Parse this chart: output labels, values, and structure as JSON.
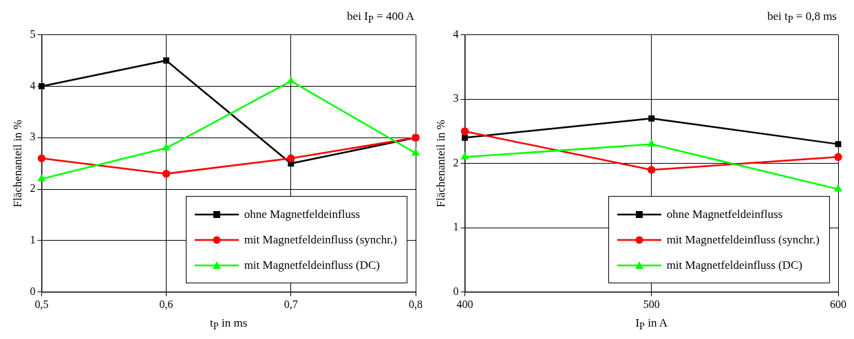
{
  "chart_data": [
    {
      "type": "line",
      "title": "bei I$_{P}$ = 400 A",
      "xlabel": "t$_{P}$ in ms",
      "ylabel": "Flächenanteil in %",
      "x": [
        0.5,
        0.6,
        0.7,
        0.8
      ],
      "xlim": [
        0.5,
        0.8
      ],
      "xticks": [
        {
          "value": 0.5,
          "label": "0,5"
        },
        {
          "value": 0.6,
          "label": "0,6"
        },
        {
          "value": 0.7,
          "label": "0,7"
        },
        {
          "value": 0.8,
          "label": "0,8"
        }
      ],
      "ylim": [
        0,
        5
      ],
      "yticks": [
        0,
        1,
        2,
        3,
        4,
        5
      ],
      "grid": true,
      "legend": "bottom right",
      "line_style": "solid",
      "series": [
        {
          "name": "ohne Magnetfeldeinfluss",
          "color": "#000000",
          "marker": "square",
          "values": [
            4.0,
            4.5,
            2.5,
            3.0
          ]
        },
        {
          "name": "mit Magnetfeldeinfluss (synchr.)",
          "color": "#ff0000",
          "marker": "circle",
          "values": [
            2.6,
            2.3,
            2.6,
            3.0
          ]
        },
        {
          "name": "mit Magnetfeldeinfluss (DC)",
          "color": "#00ff00",
          "marker": "triangle",
          "values": [
            2.2,
            2.8,
            4.1,
            2.7
          ]
        }
      ]
    },
    {
      "type": "line",
      "title": "bei t$_{P}$ = 0,8 ms",
      "xlabel": "I$_{P}$ in A",
      "ylabel": "Flächenanteil in %",
      "x": [
        400,
        500,
        600
      ],
      "xlim": [
        400,
        600
      ],
      "xticks": [
        400,
        500,
        600
      ],
      "ylim": [
        0,
        4
      ],
      "yticks": [
        0,
        1,
        2,
        3,
        4
      ],
      "grid": true,
      "legend": "bottom right",
      "line_style": "solid",
      "series": [
        {
          "name": "ohne Magnetfeldeinfluss",
          "color": "#000000",
          "marker": "square",
          "values": [
            2.4,
            2.7,
            2.3
          ]
        },
        {
          "name": "mit Magnetfeldeinfluss (synchr.)",
          "color": "#ff0000",
          "marker": "circle",
          "values": [
            2.5,
            1.9,
            2.1
          ]
        },
        {
          "name": "mit Magnetfeldeinfluss (DC)",
          "color": "#00ff00",
          "marker": "triangle",
          "values": [
            2.1,
            2.3,
            1.6
          ]
        }
      ]
    }
  ]
}
